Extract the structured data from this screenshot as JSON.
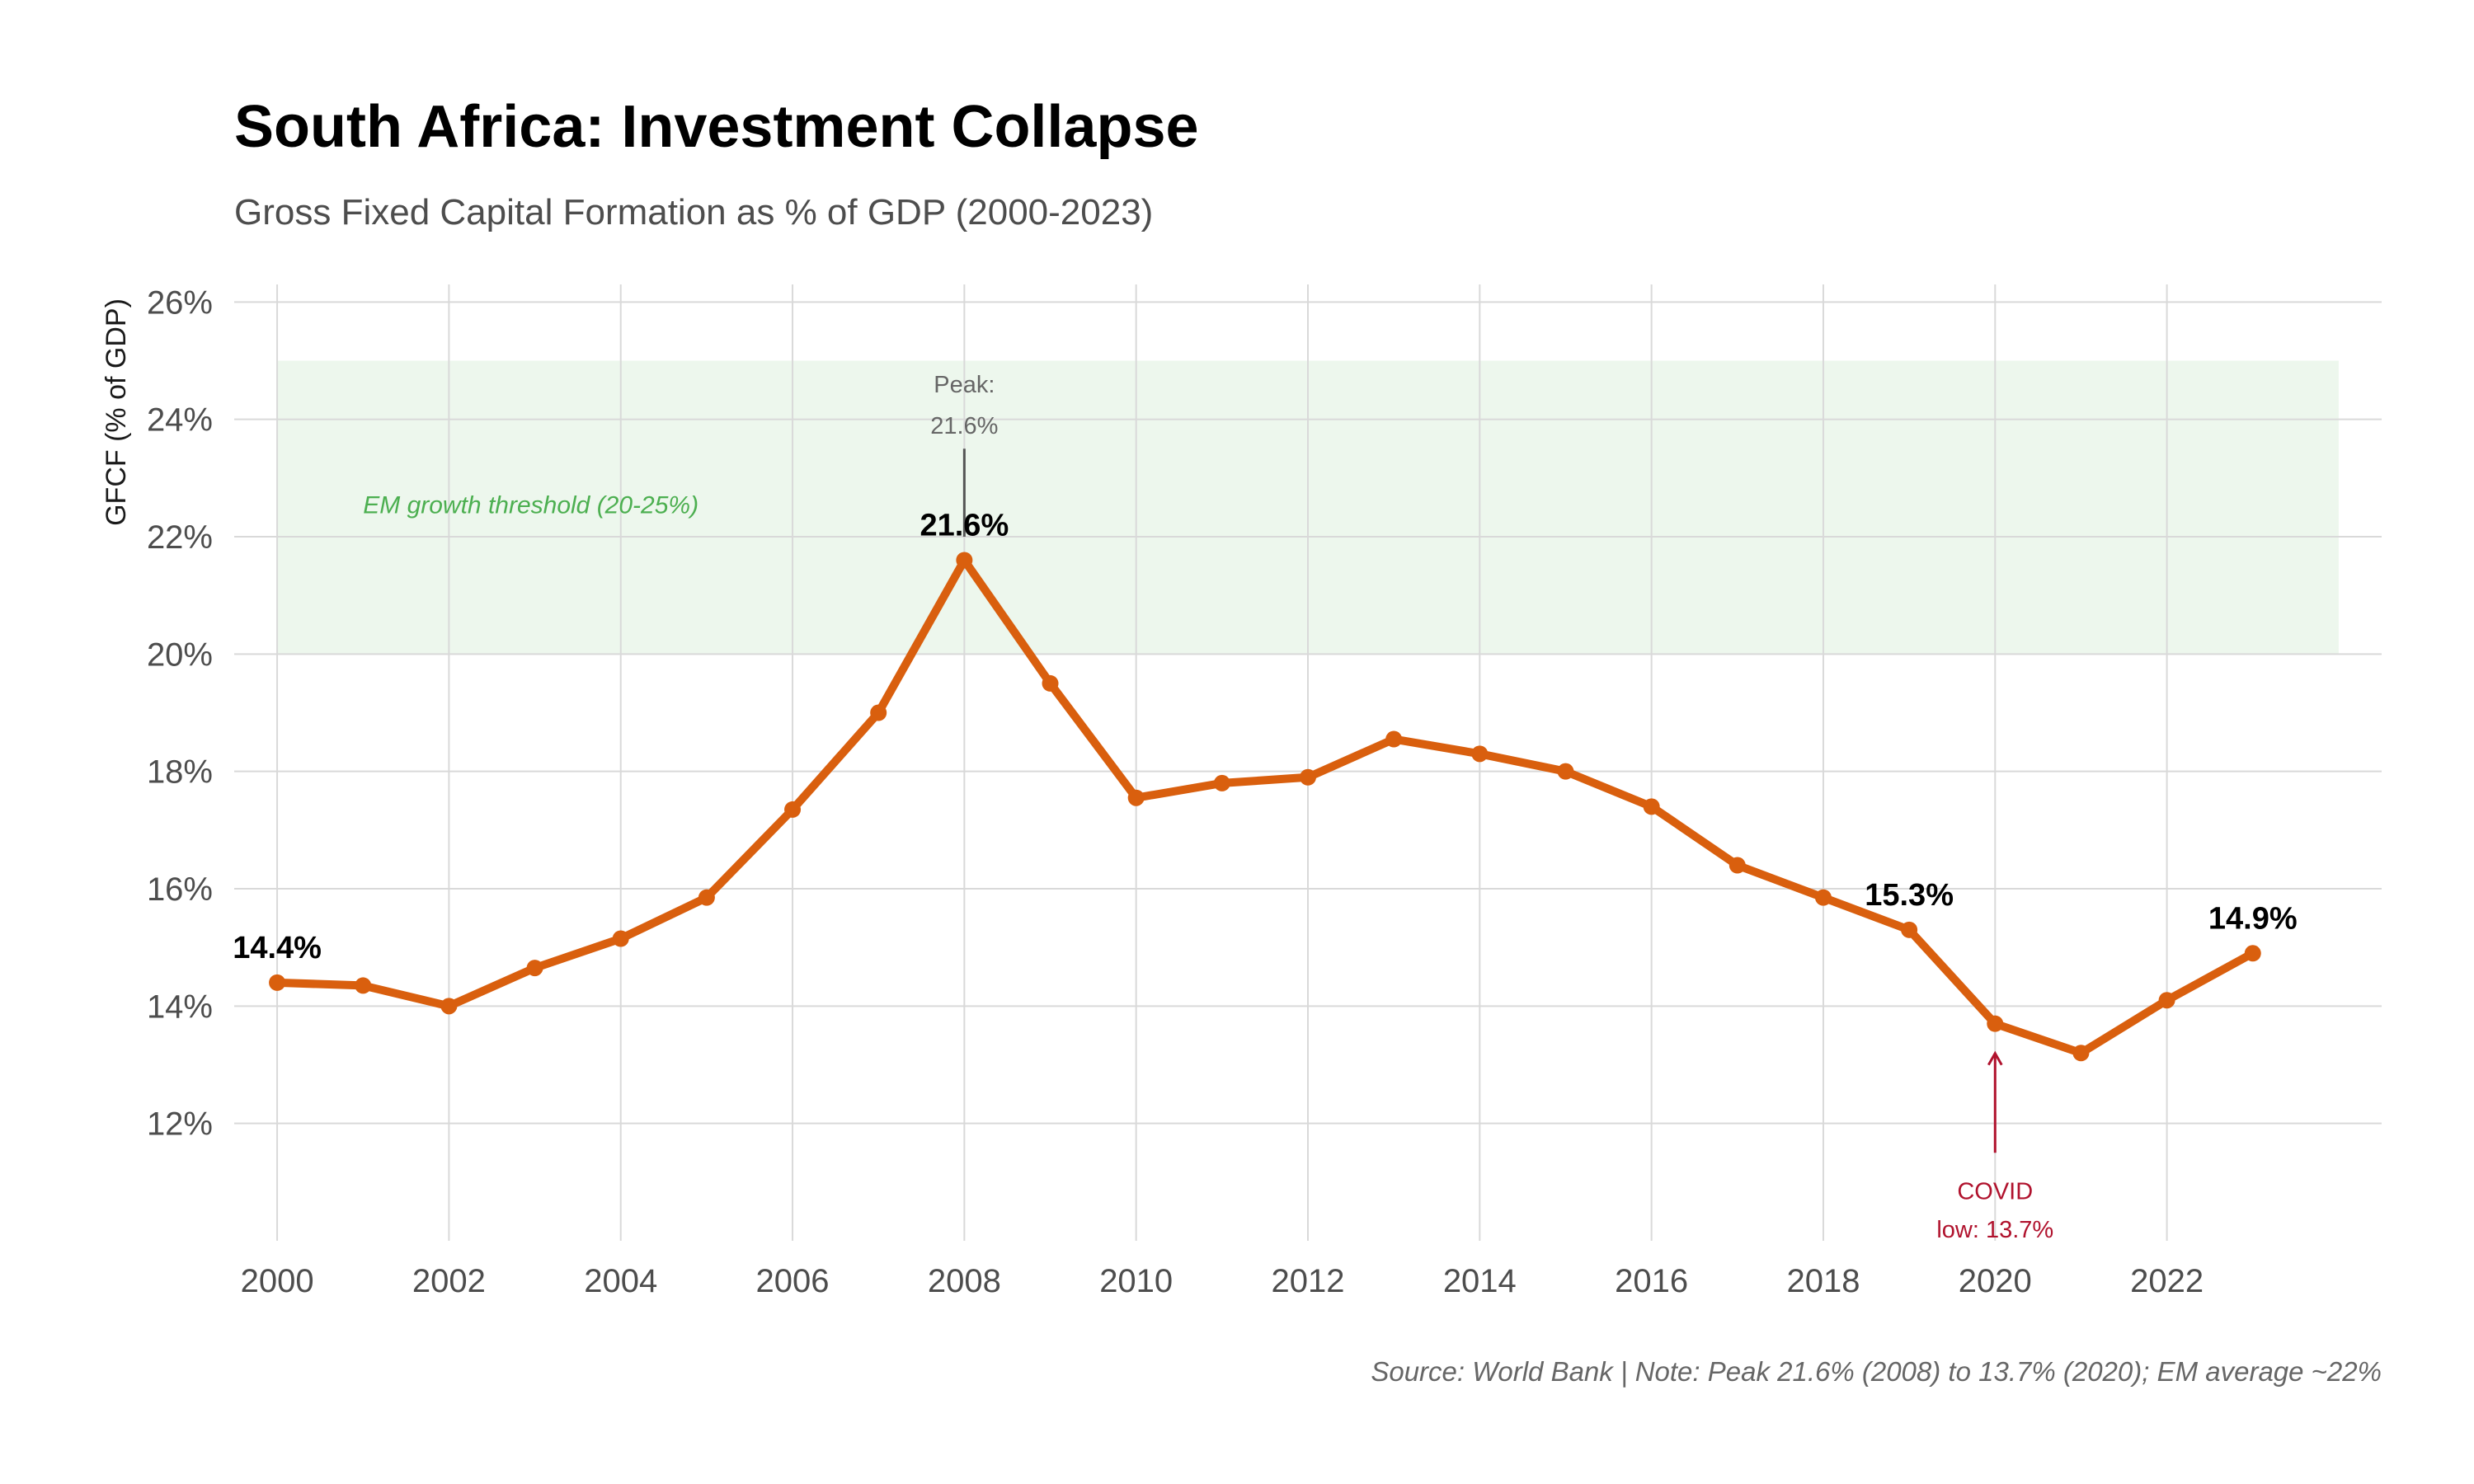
{
  "chart_data": {
    "type": "line",
    "title": "South Africa: Investment Collapse",
    "subtitle": "Gross Fixed Capital Formation as % of GDP (2000-2023)",
    "xlabel": "",
    "ylabel": "GFCF (% of GDP)",
    "x": [
      2000,
      2001,
      2002,
      2003,
      2004,
      2005,
      2006,
      2007,
      2008,
      2009,
      2010,
      2011,
      2012,
      2013,
      2014,
      2015,
      2016,
      2017,
      2018,
      2019,
      2020,
      2021,
      2022,
      2023
    ],
    "series": [
      {
        "values": [
          14.4,
          14.35,
          14.0,
          14.65,
          15.15,
          15.85,
          17.35,
          19.0,
          21.6,
          19.5,
          17.55,
          17.8,
          17.9,
          18.55,
          18.3,
          18.0,
          17.4,
          16.4,
          15.85,
          15.3,
          13.7,
          13.2,
          14.1,
          14.9
        ],
        "color": "#d95f0e"
      }
    ],
    "xlim": [
      1999.5,
      2024.5
    ],
    "ylim": [
      10.0,
      26.3
    ],
    "x_ticks": [
      "2000",
      "2002",
      "2004",
      "2006",
      "2008",
      "2010",
      "2012",
      "2014",
      "2016",
      "2018",
      "2020",
      "2022"
    ],
    "y_ticks": [
      "12%",
      "14%",
      "16%",
      "18%",
      "20%",
      "22%",
      "24%",
      "26%"
    ],
    "grid": true,
    "shaded_band": {
      "label": "EM growth threshold (20-25%)",
      "y_from": 20,
      "y_to": 25,
      "x_from": 2000,
      "x_to": 2024,
      "color": "#edf7ed"
    },
    "data_labels": [
      {
        "x": 2000,
        "y": 14.4,
        "text": "14.4%"
      },
      {
        "x": 2008,
        "y": 21.6,
        "text": "21.6%"
      },
      {
        "x": 2019,
        "y": 15.3,
        "text": "15.3%"
      },
      {
        "x": 2023,
        "y": 14.9,
        "text": "14.9%"
      }
    ],
    "annotations": [
      {
        "x": 2008,
        "y": 21.6,
        "line1": "Peak:",
        "line2": "21.6%",
        "color": "#666666"
      },
      {
        "x": 2020,
        "y": 13.7,
        "line1": "COVID",
        "line2": "low: 13.7%",
        "color": "#b0122d"
      }
    ],
    "caption": "Source: World Bank | Note: Peak 21.6% (2008) to 13.7% (2020); EM average ~22%"
  }
}
